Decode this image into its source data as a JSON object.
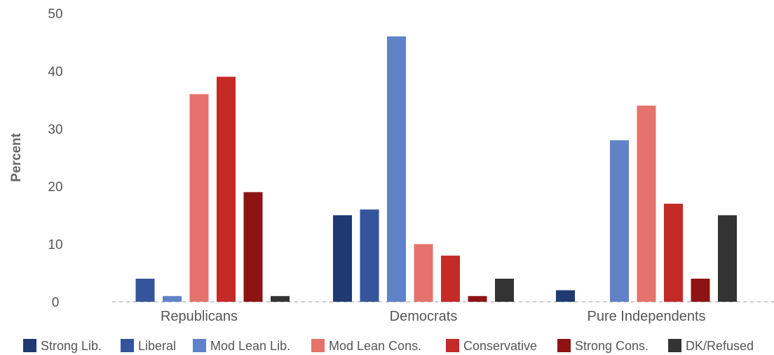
{
  "chart_data": {
    "type": "bar",
    "ylabel": "Percent",
    "xlabel": "",
    "ylim": [
      0,
      50
    ],
    "yticks": [
      0,
      10,
      20,
      30,
      40,
      50
    ],
    "grid": false,
    "legend_position": "bottom",
    "categories": [
      "Republicans",
      "Democrats",
      "Pure Independents"
    ],
    "series": [
      {
        "name": "Strong Lib.",
        "color": "#1f3a73",
        "values": [
          0,
          15,
          2
        ]
      },
      {
        "name": "Liberal",
        "color": "#34559c",
        "values": [
          4,
          16,
          0
        ]
      },
      {
        "name": "Mod Lean Lib.",
        "color": "#6082c8",
        "values": [
          1,
          46,
          28
        ]
      },
      {
        "name": "Mod Lean Cons.",
        "color": "#e5736b",
        "values": [
          36,
          10,
          34
        ]
      },
      {
        "name": "Conservative",
        "color": "#c42b27",
        "values": [
          39,
          8,
          17
        ]
      },
      {
        "name": "Strong Cons.",
        "color": "#8e1414",
        "values": [
          19,
          1,
          4
        ]
      },
      {
        "name": "DK/Refused",
        "color": "#333333",
        "values": [
          1,
          4,
          15
        ]
      }
    ]
  }
}
